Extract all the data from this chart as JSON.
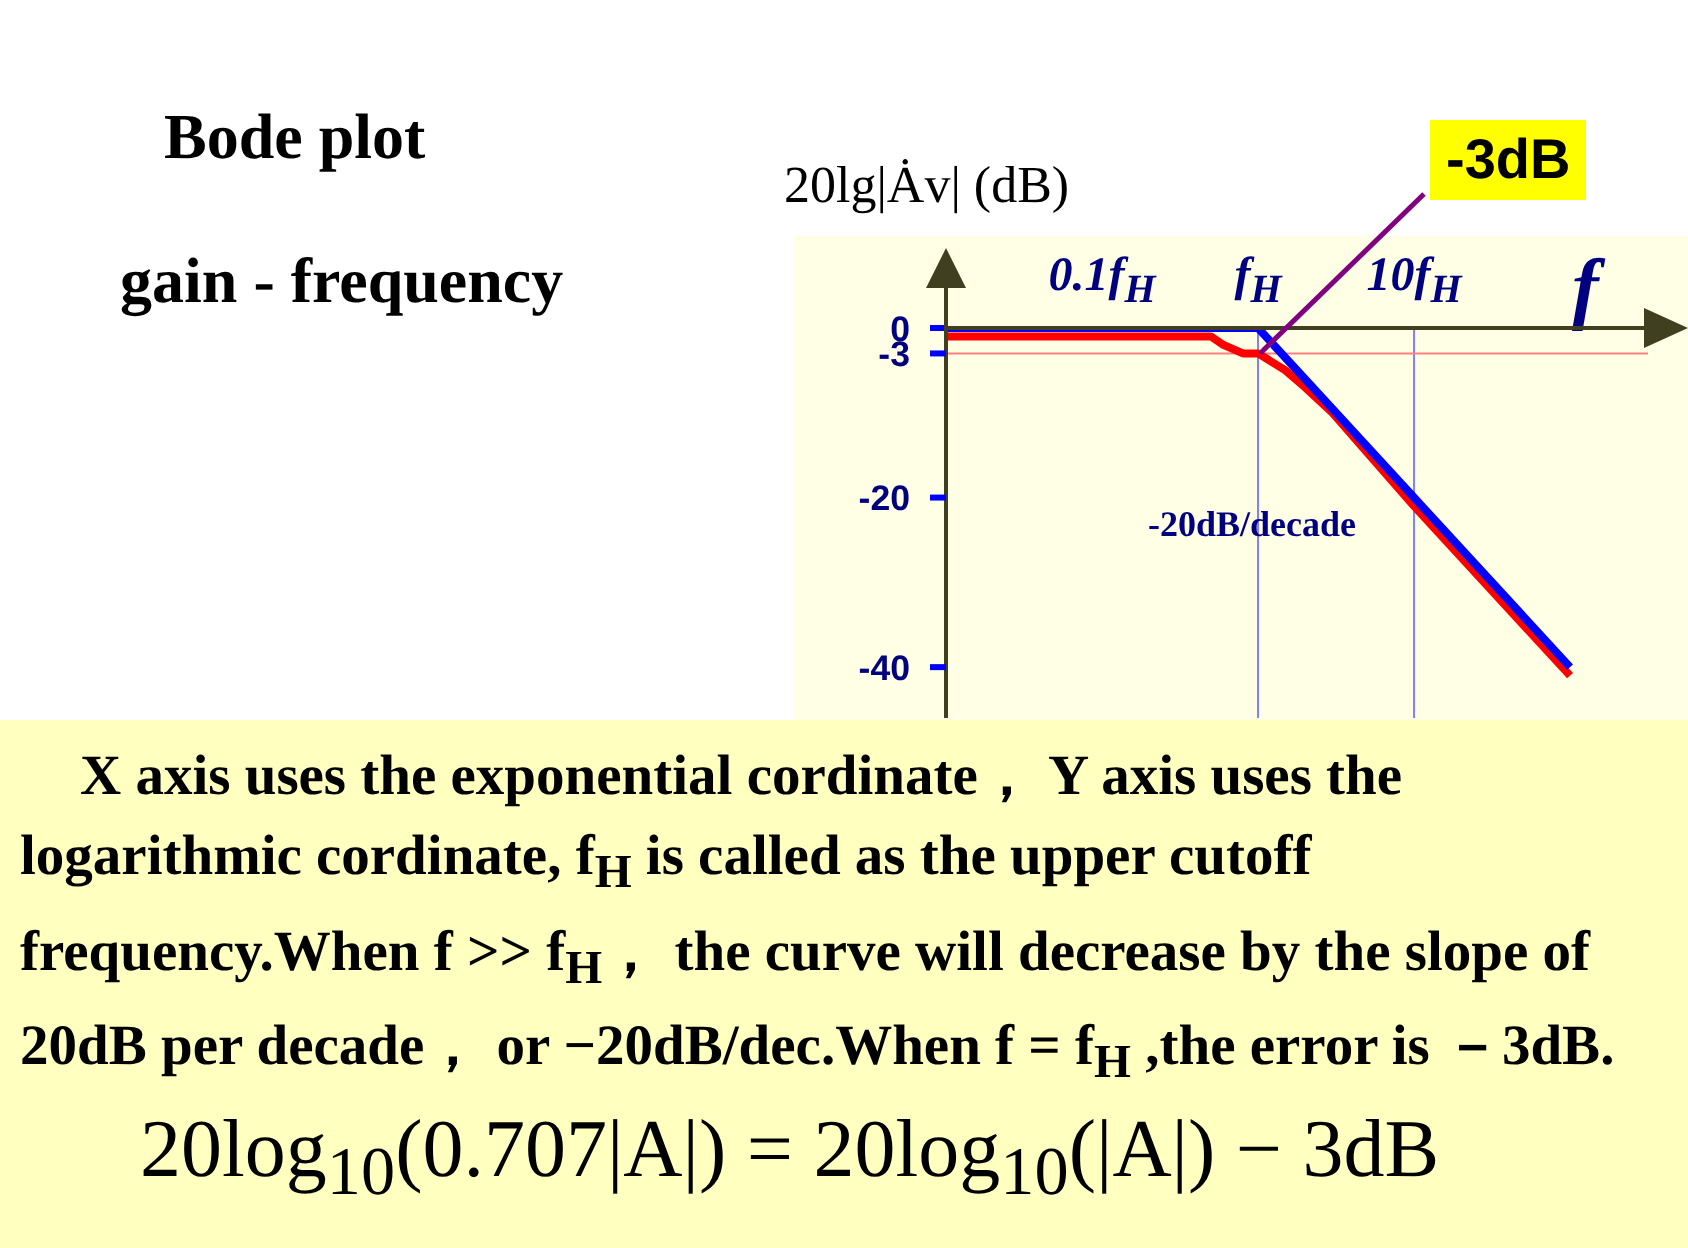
{
  "chart_data": {
    "type": "line",
    "title": "Bode plot",
    "subtitle": "gain - frequency",
    "xlabel": "f",
    "ylabel": "20lg|Ȧv| (dB)",
    "annotations": [
      {
        "text": "-3dB",
        "x": 1,
        "y": -3
      },
      "-20dB/decade",
      "X axis uses the exponential cordinate， Y axis uses the logarithmic cordinate, f$_{H}$ is called as the upper cutoff frequency.When  f >> f$_{H}$，  the curve will decrease by the slope of 20dB per decade，  or −20dB/dec.When  f = f$_{H}$ ,the error is －3dB.",
      "20log$_{10}$(0.707|A|) = 20log$_{10}$(|A|) − 3dB"
    ],
    "log": "x",
    "xlim": [
      0.01,
      316
    ],
    "ylim": [
      -46,
      0
    ],
    "xticks": [
      {
        "value": 0.1,
        "label": "0.1f$_{H}$"
      },
      {
        "value": 1,
        "label": "f$_{H}$"
      },
      {
        "value": 10,
        "label": "10f$_{H}$"
      }
    ],
    "yticks": [
      0,
      -3,
      -20,
      -40
    ],
    "series": [
      {
        "color": "#ff0000",
        "x": [
          0.01,
          0.5,
          0.6,
          0.8,
          1,
          1.5,
          2,
          3,
          10,
          100
        ],
        "values": [
          -1,
          -1,
          -2,
          -3,
          -3,
          -5,
          -7,
          -10,
          -21,
          -41
        ]
      },
      {
        "color": "#0000ff",
        "x": [
          0.01,
          1,
          10,
          100
        ],
        "values": [
          0,
          0,
          -20,
          -40
        ]
      }
    ],
    "ref_lines": [
      {
        "axis": "x",
        "value": 1,
        "color": "#8080ff"
      },
      {
        "axis": "x",
        "value": 10,
        "color": "#8080ff"
      },
      {
        "axis": "y",
        "value": -3,
        "color": "#ff8080"
      }
    ],
    "marker": "none",
    "line_style": "solid"
  }
}
